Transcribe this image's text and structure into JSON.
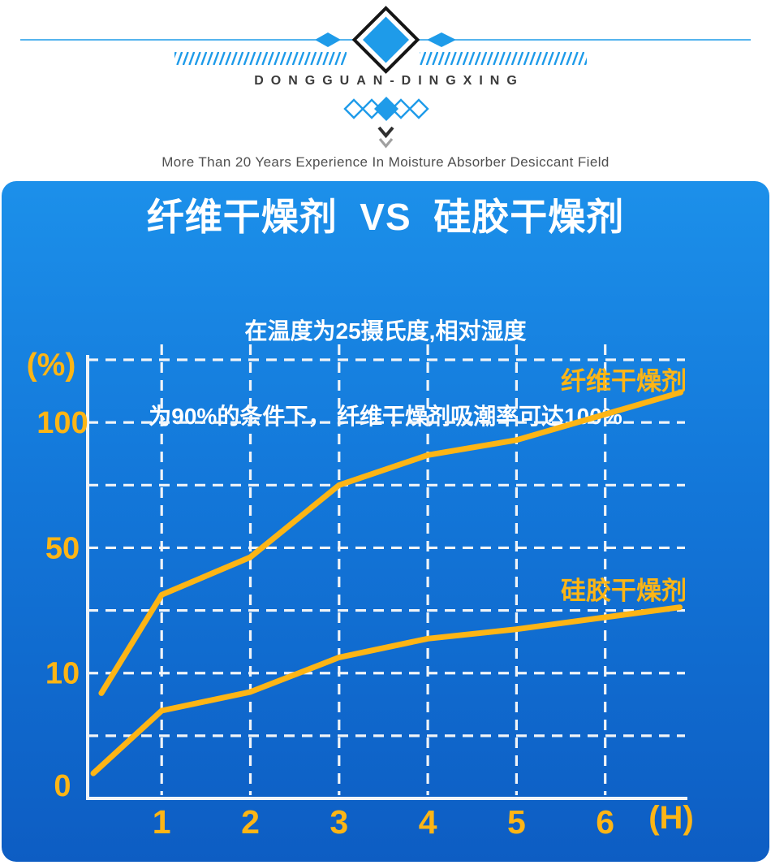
{
  "header": {
    "brand": "DONGGUAN-DINGXING",
    "tagline": "More Than 20 Years Experience In Moisture Absorber Desiccant Field",
    "ornament_color": "#1e9be9",
    "diamond_outline_color": "#151515",
    "chevron_dark_color": "#2f2f2f",
    "chevron_light_color": "#a0a0a0"
  },
  "panel": {
    "subtitle_line1": "在温度为25摄氏度,相对湿度",
    "subtitle_line2": "为90%的条件下， 纤维干燥剂吸潮率可达100%",
    "bg_top": "#1c90ea",
    "bg_bottom": "#0d5dc3"
  },
  "chart_data": {
    "type": "line",
    "title": "纤维干燥剂  VS  硅胶干燥剂",
    "xlabel": "(H)",
    "ylabel": "(%)",
    "x_ticks": [
      "1",
      "2",
      "3",
      "4",
      "5",
      "6"
    ],
    "y_ticks": [
      {
        "label": "0",
        "value": 0,
        "dy": -16
      },
      {
        "label": "10",
        "value": 10,
        "dy": 0
      },
      {
        "label": "50",
        "value": 50,
        "dy": 0
      },
      {
        "label": "100",
        "value": 100,
        "dy": 0
      }
    ],
    "y_axis": {
      "type": "piecewise-nonlinear",
      "anchors_value_to_gridcells": [
        [
          0,
          0
        ],
        [
          10,
          2
        ],
        [
          50,
          4
        ],
        [
          100,
          6
        ],
        [
          125,
          7
        ]
      ],
      "grid_cells": 7
    },
    "x_axis": {
      "unit": "hours",
      "ticks": [
        1,
        2,
        3,
        4,
        5,
        6
      ]
    },
    "grid": true,
    "legend_position": "inline-labels",
    "series": [
      {
        "name": "纤维干燥剂",
        "points_hour_percent": [
          [
            0.32,
            8.4
          ],
          [
            1,
            35
          ],
          [
            2,
            47
          ],
          [
            3,
            75
          ],
          [
            4,
            87
          ],
          [
            5,
            93
          ],
          [
            6.85,
            112
          ]
        ]
      },
      {
        "name": "硅胶干燥剂",
        "points_hour_percent": [
          [
            0.23,
            2
          ],
          [
            1,
            7
          ],
          [
            2,
            8.5
          ],
          [
            3,
            15
          ],
          [
            4,
            21
          ],
          [
            5,
            24
          ],
          [
            6.84,
            31
          ]
        ]
      }
    ],
    "colors": {
      "line": "#fdb515",
      "tick_label": "#fdb515",
      "grid": "#f0f4f8",
      "axis": "#f0f4f8"
    }
  }
}
